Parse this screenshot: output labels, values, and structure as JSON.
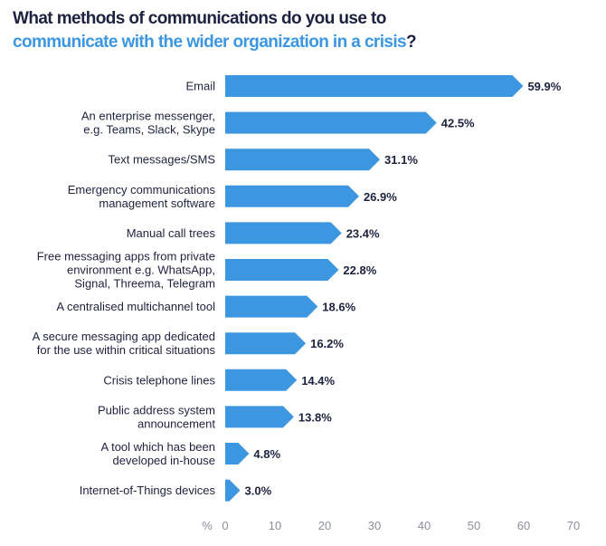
{
  "title": {
    "line1": "What methods of communications do you use to",
    "line2_highlight": "communicate with the wider organization in a crisis",
    "line2_end": "?"
  },
  "colors": {
    "bar": "#3d97e0",
    "title_accent": "#3d97e0",
    "text": "#1c2240",
    "axis": "#8a8f9c"
  },
  "chart_data": {
    "type": "bar",
    "orientation": "horizontal",
    "title": "What methods of communications do you use to communicate with the wider organization in a crisis?",
    "xlabel": "%",
    "xlim": [
      0,
      70
    ],
    "xticks": [
      0,
      10,
      20,
      30,
      40,
      50,
      60,
      70
    ],
    "grid": false,
    "value_suffix": "%",
    "categories": [
      [
        "Email"
      ],
      [
        "An enterprise messenger,",
        "e.g. Teams, Slack, Skype"
      ],
      [
        "Text messages/SMS"
      ],
      [
        "Emergency communications",
        "management software"
      ],
      [
        "Manual call trees"
      ],
      [
        "Free messaging apps from private",
        "environment e.g. WhatsApp,",
        "Signal, Threema, Telegram"
      ],
      [
        "A centralised multichannel tool"
      ],
      [
        "A secure messaging app dedicated",
        "for the use within critical situations"
      ],
      [
        "Crisis telephone lines"
      ],
      [
        "Public address system",
        "announcement"
      ],
      [
        "A tool which has been",
        "developed in-house"
      ],
      [
        "Internet-of-Things devices"
      ]
    ],
    "values": [
      59.9,
      42.5,
      31.1,
      26.9,
      23.4,
      22.8,
      18.6,
      16.2,
      14.4,
      13.8,
      4.8,
      3.0
    ],
    "labels": [
      "59.9%",
      "42.5%",
      "31.1%",
      "26.9%",
      "23.4%",
      "22.8%",
      "18.6%",
      "16.2%",
      "14.4%",
      "13.8%",
      "4.8%",
      "3.0%"
    ]
  }
}
